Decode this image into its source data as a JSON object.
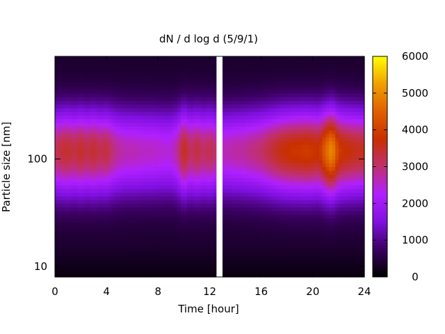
{
  "chart_data": {
    "type": "heatmap",
    "title": "dN / d log d (5/9/1)",
    "xlabel": "Time [hour]",
    "ylabel": "Particle size [nm]",
    "xlim": [
      0,
      24
    ],
    "ylim": [
      8,
      900
    ],
    "yscale": "log",
    "x_ticks": [
      0,
      4,
      8,
      12,
      16,
      20,
      24
    ],
    "x_tick_labels": [
      "0",
      "4",
      "8",
      "12",
      "16",
      "20",
      "24"
    ],
    "y_ticks": [
      10,
      100
    ],
    "y_tick_labels": [
      "10",
      "100"
    ],
    "colorbar": {
      "range": [
        0,
        6000
      ],
      "ticks": [
        0,
        1000,
        2000,
        3000,
        4000,
        5000,
        6000
      ],
      "tick_labels": [
        "0",
        "1000",
        "2000",
        "3000",
        "4000",
        "5000",
        "6000"
      ],
      "colormap": [
        "#000000",
        "#3a0060",
        "#8010e0",
        "#b020ff",
        "#c03070",
        "#c83000",
        "#e06000",
        "#f0a000",
        "#ffff00"
      ]
    },
    "data_gap": {
      "x_start": 12.5,
      "x_end": 12.9
    },
    "peak_diameter_nm": 120,
    "time_hours": [
      0,
      0.5,
      1,
      1.5,
      2,
      2.5,
      3,
      3.5,
      4,
      4.5,
      5,
      5.5,
      6,
      6.5,
      7,
      7.5,
      8,
      8.5,
      9,
      9.5,
      10,
      10.5,
      11,
      11.5,
      12,
      13,
      13.5,
      14,
      14.5,
      15,
      15.5,
      16,
      16.5,
      17,
      17.5,
      18,
      18.5,
      19,
      19.5,
      20,
      20.5,
      21,
      21.5,
      22,
      22.5,
      23,
      23.5
    ],
    "peak_concentration": [
      2800,
      3000,
      3100,
      2900,
      3150,
      2900,
      3100,
      2850,
      3000,
      2600,
      2400,
      2300,
      2300,
      2250,
      2200,
      2200,
      2150,
      2100,
      2100,
      2400,
      3300,
      2700,
      3000,
      2700,
      2900,
      2300,
      2300,
      2400,
      2400,
      2500,
      2600,
      2700,
      2900,
      3100,
      3300,
      3400,
      3500,
      3500,
      3600,
      3500,
      3400,
      4200,
      4700,
      3600,
      3400,
      3300,
      3200
    ]
  }
}
